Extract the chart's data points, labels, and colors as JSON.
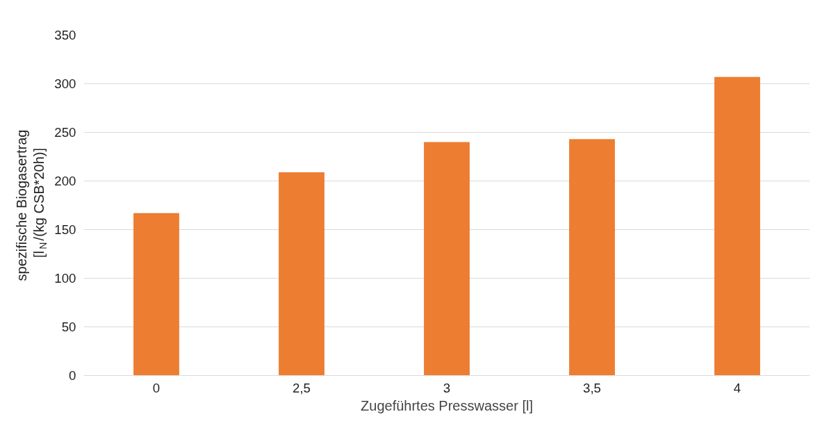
{
  "chart_data": {
    "type": "bar",
    "xlabel": "Zugeführtes Presswasser [l]",
    "ylabel": "spezifische Biogasertrag\n[l$_{N}$/(kg CSB*20h)]",
    "categories": [
      "0",
      "2,5",
      "3",
      "3,5",
      "4"
    ],
    "values": [
      167,
      209,
      240,
      243,
      307
    ],
    "color": "#ed7d31",
    "ylim": [
      0,
      350
    ],
    "yticks": [
      0,
      50,
      100,
      150,
      200,
      250,
      300,
      350
    ],
    "grid": "y"
  }
}
